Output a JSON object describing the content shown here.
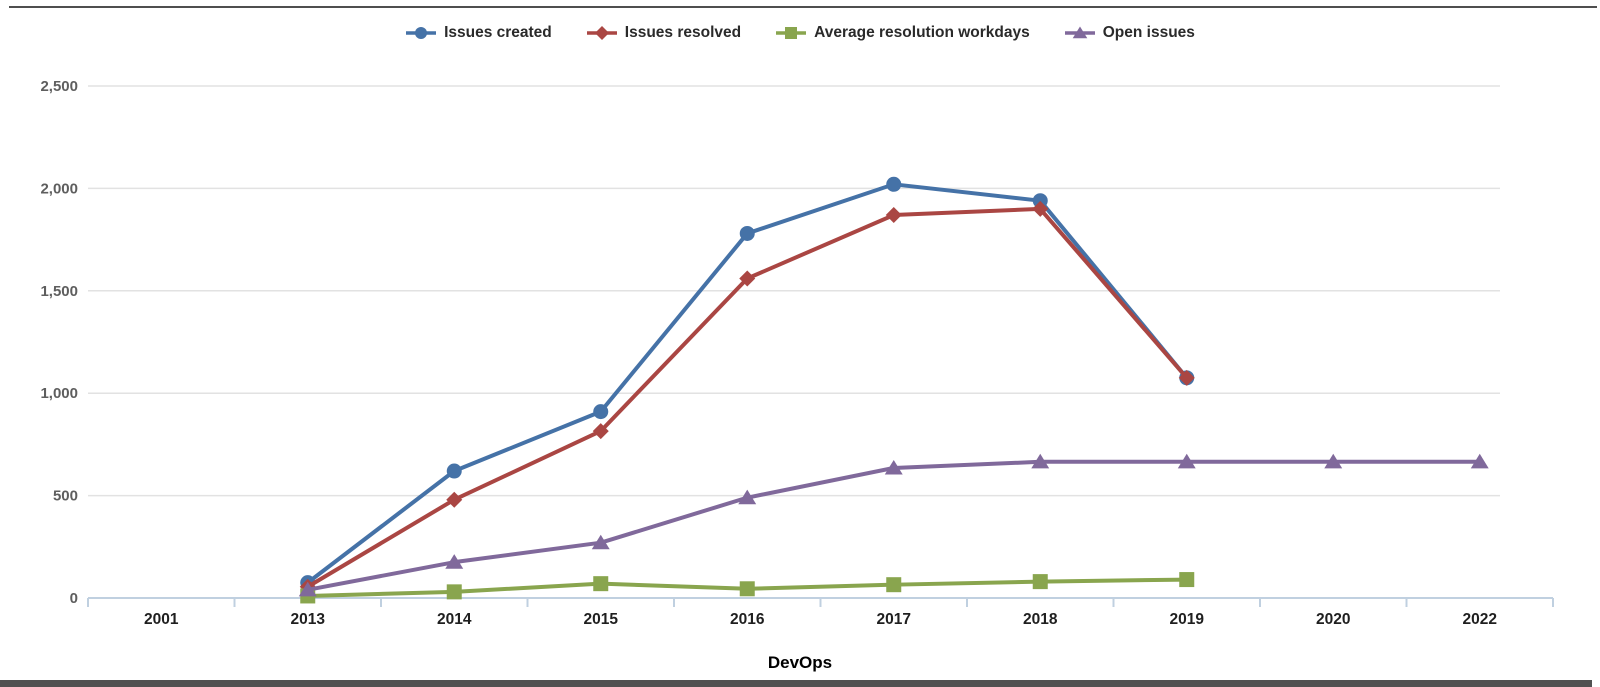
{
  "window": {
    "background": "#ffffff",
    "top_border_color": "#4f4f4f",
    "bottom_bar_color": "#515151"
  },
  "chart_data": {
    "type": "line",
    "title": "",
    "xlabel": "DevOps",
    "ylabel": "",
    "ylim": [
      0,
      2500
    ],
    "grid": true,
    "legend_position": "top-center",
    "axis_line_color": "#c0d0e0",
    "grid_color": "#e2e2e2",
    "categories": [
      "2001",
      "2013",
      "2014",
      "2015",
      "2016",
      "2017",
      "2018",
      "2019",
      "2020",
      "2022"
    ],
    "y_ticks": [
      "0",
      "500",
      "1,000",
      "1,500",
      "2,000",
      "2,500"
    ],
    "y_tick_values": [
      0,
      500,
      1000,
      1500,
      2000,
      2500
    ],
    "series": [
      {
        "name": "Issues created",
        "color": "#4572a7",
        "marker": "circle",
        "values": [
          null,
          75,
          620,
          910,
          1780,
          2020,
          1940,
          1075,
          null,
          null
        ]
      },
      {
        "name": "Issues resolved",
        "color": "#aa4643",
        "marker": "diamond",
        "values": [
          null,
          55,
          480,
          815,
          1560,
          1870,
          1900,
          1075,
          null,
          null
        ]
      },
      {
        "name": "Average resolution workdays",
        "color": "#89a54e",
        "marker": "square",
        "values": [
          null,
          10,
          30,
          70,
          45,
          65,
          80,
          90,
          null,
          null
        ]
      },
      {
        "name": "Open issues",
        "color": "#80699b",
        "marker": "triangle",
        "values": [
          null,
          40,
          175,
          270,
          490,
          635,
          665,
          665,
          665,
          665
        ]
      }
    ]
  }
}
